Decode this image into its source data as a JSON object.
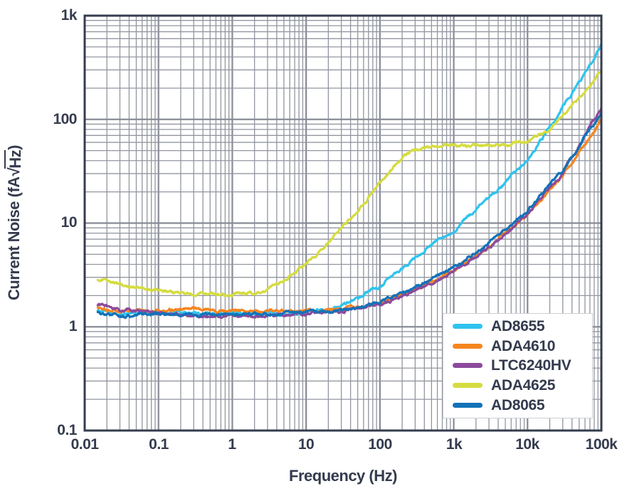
{
  "page": {
    "background": "#ffffff"
  },
  "chart": {
    "frame_color": "#353c4e",
    "grid_minor_color": "#9296a0",
    "grid_major_color": "#878b95",
    "text_color": "#343b4e",
    "legend_border_color": "#cdd0d4",
    "legend_background": "#ffffff"
  },
  "chart_data": {
    "type": "line",
    "title": "",
    "xlabel": "Frequency (Hz)",
    "ylabel": "Current Noise (fA√Hz)",
    "ylabel_parts": {
      "prefix": "Current Noise (fA",
      "radical": "√",
      "radicand": "Hz",
      "suffix": ")"
    },
    "x_scale": "log",
    "y_scale": "log",
    "xlim": [
      0.01,
      100000
    ],
    "ylim": [
      0.1,
      1000
    ],
    "x_tick_labels": [
      "0.01",
      "0.1",
      "1",
      "10",
      "100",
      "1k",
      "10k",
      "100k"
    ],
    "y_tick_labels": [
      "1k",
      "100",
      "10",
      "1",
      "0.1"
    ],
    "grid": true,
    "grid_style": "full log major+minor gray grid",
    "legend_position": "lower-right",
    "curve_appearance": "noisy measured traces, ~3px thick",
    "series": [
      {
        "name": "AD8655",
        "color": "#2fc3ef",
        "points": [
          [
            0.015,
            1.45
          ],
          [
            0.03,
            1.3
          ],
          [
            0.1,
            1.38
          ],
          [
            0.3,
            1.34
          ],
          [
            1,
            1.35
          ],
          [
            3,
            1.36
          ],
          [
            10,
            1.4
          ],
          [
            20,
            1.5
          ],
          [
            50,
            1.9
          ],
          [
            100,
            2.4
          ],
          [
            200,
            3.6
          ],
          [
            500,
            6.2
          ],
          [
            1000,
            8.5
          ],
          [
            2000,
            13.5
          ],
          [
            5000,
            24
          ],
          [
            10000,
            40
          ],
          [
            20000,
            85
          ],
          [
            50000,
            230
          ],
          [
            100000,
            500
          ]
        ]
      },
      {
        "name": "ADA4610",
        "color": "#f6861f",
        "points": [
          [
            0.015,
            1.5
          ],
          [
            0.03,
            1.4
          ],
          [
            0.1,
            1.44
          ],
          [
            0.3,
            1.45
          ],
          [
            1,
            1.42
          ],
          [
            3,
            1.43
          ],
          [
            10,
            1.4
          ],
          [
            30,
            1.45
          ],
          [
            100,
            1.7
          ],
          [
            300,
            2.3
          ],
          [
            1000,
            3.5
          ],
          [
            3000,
            6.0
          ],
          [
            10000,
            12.0
          ],
          [
            30000,
            28
          ],
          [
            100000,
            100
          ]
        ]
      },
      {
        "name": "LTC6240HV",
        "color": "#8c4a9c",
        "points": [
          [
            0.015,
            1.62
          ],
          [
            0.03,
            1.48
          ],
          [
            0.1,
            1.35
          ],
          [
            0.3,
            1.27
          ],
          [
            1,
            1.3
          ],
          [
            3,
            1.27
          ],
          [
            10,
            1.33
          ],
          [
            30,
            1.42
          ],
          [
            100,
            1.65
          ],
          [
            300,
            2.2
          ],
          [
            1000,
            3.4
          ],
          [
            3000,
            5.8
          ],
          [
            10000,
            12.5
          ],
          [
            30000,
            30
          ],
          [
            100000,
            128
          ]
        ]
      },
      {
        "name": "ADA4625",
        "color": "#d5dc40",
        "points": [
          [
            0.015,
            2.9
          ],
          [
            0.03,
            2.55
          ],
          [
            0.05,
            2.4
          ],
          [
            0.1,
            2.25
          ],
          [
            0.3,
            2.1
          ],
          [
            1,
            2.05
          ],
          [
            2,
            2.1
          ],
          [
            3,
            2.3
          ],
          [
            5,
            2.8
          ],
          [
            10,
            4.0
          ],
          [
            20,
            6.5
          ],
          [
            50,
            13
          ],
          [
            100,
            25
          ],
          [
            200,
            42
          ],
          [
            300,
            51
          ],
          [
            500,
            55
          ],
          [
            1000,
            56
          ],
          [
            2000,
            54
          ],
          [
            5000,
            56
          ],
          [
            10000,
            61
          ],
          [
            20000,
            80
          ],
          [
            50000,
            160
          ],
          [
            100000,
            290
          ]
        ]
      },
      {
        "name": "AD8065",
        "color": "#1372b8",
        "points": [
          [
            0.015,
            1.42
          ],
          [
            0.03,
            1.27
          ],
          [
            0.1,
            1.36
          ],
          [
            0.3,
            1.33
          ],
          [
            1,
            1.32
          ],
          [
            3,
            1.33
          ],
          [
            10,
            1.37
          ],
          [
            30,
            1.45
          ],
          [
            100,
            1.75
          ],
          [
            300,
            2.4
          ],
          [
            1000,
            3.7
          ],
          [
            3000,
            6.4
          ],
          [
            10000,
            13.5
          ],
          [
            30000,
            32
          ],
          [
            100000,
            118
          ]
        ]
      }
    ]
  }
}
